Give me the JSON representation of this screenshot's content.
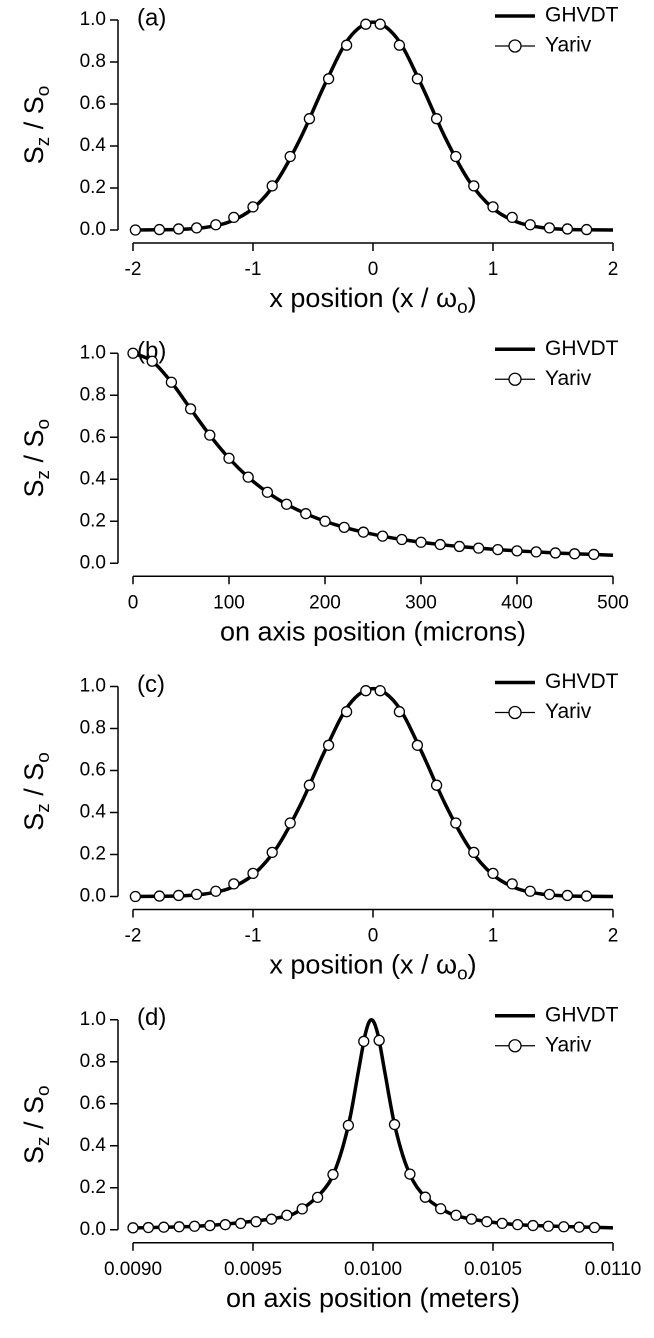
{
  "chart_data": [
    {
      "type": "line",
      "label": "(a)",
      "ylabel": [
        "S",
        "z",
        " / S",
        "o"
      ],
      "xlabel": [
        "x position (x / ω",
        "o",
        ")"
      ],
      "xlim": [
        -2,
        2
      ],
      "ylim": [
        0,
        1
      ],
      "xticks": [
        -2,
        -1,
        0,
        1,
        2
      ],
      "yticks": [
        {
          "value": 0,
          "label": "0.0"
        },
        {
          "value": 0.2,
          "label": "0.2"
        },
        {
          "value": 0.4,
          "label": "0.4"
        },
        {
          "value": 0.6,
          "label": "0.6"
        },
        {
          "value": 0.8,
          "label": "0.8"
        },
        {
          "value": 1,
          "label": "1.0"
        }
      ],
      "legend": "upper right",
      "series": [
        {
          "name": "GHVDT",
          "color": "#000000",
          "x": [
            -2,
            -1.8,
            -1.6,
            -1.4,
            -1.2,
            -1,
            -0.8,
            -0.6,
            -0.4,
            -0.2,
            0,
            0.2,
            0.4,
            0.6,
            0.8,
            1,
            1.2,
            1.4,
            1.6,
            1.8,
            2
          ],
          "values": [
            0,
            0.001,
            0.003,
            0.012,
            0.038,
            0.103,
            0.234,
            0.442,
            0.695,
            0.913,
            0.99,
            0.913,
            0.695,
            0.442,
            0.234,
            0.103,
            0.038,
            0.012,
            0.003,
            0.001,
            0
          ]
        },
        {
          "name": "Yariv",
          "color": "#000000",
          "marker": "circle",
          "x": [
            -1.98,
            -1.78,
            -1.62,
            -1.47,
            -1.31,
            -1.16,
            -1,
            -0.84,
            -0.69,
            -0.53,
            -0.37,
            -0.22,
            -0.06,
            0.06,
            0.22,
            0.37,
            0.53,
            0.69,
            0.84,
            1,
            1.16,
            1.31,
            1.47,
            1.62,
            1.78
          ],
          "values": [
            0,
            0.002,
            0.005,
            0.01,
            0.025,
            0.06,
            0.11,
            0.21,
            0.35,
            0.53,
            0.72,
            0.88,
            0.98,
            0.98,
            0.88,
            0.72,
            0.53,
            0.35,
            0.21,
            0.11,
            0.06,
            0.025,
            0.01,
            0.005,
            0.002
          ]
        }
      ]
    },
    {
      "type": "line",
      "label": "(b)",
      "ylabel": [
        "S",
        "z",
        " / S",
        "o"
      ],
      "xlabel": [
        "on axis position (microns)"
      ],
      "xlim": [
        0,
        500
      ],
      "ylim": [
        0,
        1
      ],
      "xticks": [
        0,
        100,
        200,
        300,
        400,
        500
      ],
      "yticks": [
        {
          "value": 0,
          "label": "0.0"
        },
        {
          "value": 0.2,
          "label": "0.2"
        },
        {
          "value": 0.4,
          "label": "0.4"
        },
        {
          "value": 0.6,
          "label": "0.6"
        },
        {
          "value": 0.8,
          "label": "0.8"
        },
        {
          "value": 1,
          "label": "1.0"
        }
      ],
      "legend": "upper right",
      "series": [
        {
          "name": "GHVDT",
          "color": "#000000",
          "x": [
            0,
            20,
            40,
            60,
            80,
            100,
            120,
            140,
            160,
            180,
            200,
            220,
            240,
            260,
            280,
            300,
            320,
            340,
            360,
            380,
            400,
            420,
            440,
            460,
            480,
            500
          ],
          "values": [
            1,
            0.962,
            0.862,
            0.735,
            0.61,
            0.5,
            0.41,
            0.338,
            0.281,
            0.236,
            0.2,
            0.171,
            0.148,
            0.129,
            0.113,
            0.1,
            0.089,
            0.08,
            0.072,
            0.065,
            0.059,
            0.054,
            0.049,
            0.045,
            0.042,
            0.038
          ]
        },
        {
          "name": "Yariv",
          "color": "#000000",
          "marker": "circle",
          "x": [
            0,
            20,
            40,
            60,
            80,
            100,
            120,
            140,
            160,
            180,
            200,
            220,
            240,
            260,
            280,
            300,
            320,
            340,
            360,
            380,
            400,
            420,
            440,
            460,
            480
          ],
          "values": [
            1,
            0.962,
            0.862,
            0.735,
            0.61,
            0.5,
            0.41,
            0.338,
            0.281,
            0.236,
            0.2,
            0.171,
            0.148,
            0.129,
            0.113,
            0.1,
            0.089,
            0.08,
            0.072,
            0.065,
            0.059,
            0.054,
            0.049,
            0.045,
            0.042
          ]
        }
      ]
    },
    {
      "type": "line",
      "label": "(c)",
      "ylabel": [
        "S",
        "z",
        " / S",
        "o"
      ],
      "xlabel": [
        "x position (x / ω",
        "o",
        ")"
      ],
      "xlim": [
        -2,
        2
      ],
      "ylim": [
        0,
        1
      ],
      "xticks": [
        -2,
        -1,
        0,
        1,
        2
      ],
      "yticks": [
        {
          "value": 0,
          "label": "0.0"
        },
        {
          "value": 0.2,
          "label": "0.2"
        },
        {
          "value": 0.4,
          "label": "0.4"
        },
        {
          "value": 0.6,
          "label": "0.6"
        },
        {
          "value": 0.8,
          "label": "0.8"
        },
        {
          "value": 1,
          "label": "1.0"
        }
      ],
      "legend": "upper right",
      "series": [
        {
          "name": "GHVDT",
          "color": "#000000",
          "x": [
            -2,
            -1.8,
            -1.6,
            -1.4,
            -1.2,
            -1,
            -0.8,
            -0.6,
            -0.4,
            -0.2,
            0,
            0.2,
            0.4,
            0.6,
            0.8,
            1,
            1.2,
            1.4,
            1.6,
            1.8,
            2
          ],
          "values": [
            0,
            0.001,
            0.003,
            0.012,
            0.038,
            0.103,
            0.234,
            0.442,
            0.695,
            0.913,
            0.99,
            0.913,
            0.695,
            0.442,
            0.234,
            0.103,
            0.038,
            0.012,
            0.003,
            0.001,
            0
          ]
        },
        {
          "name": "Yariv",
          "color": "#000000",
          "marker": "circle",
          "x": [
            -1.98,
            -1.78,
            -1.62,
            -1.47,
            -1.31,
            -1.16,
            -1,
            -0.84,
            -0.69,
            -0.53,
            -0.37,
            -0.22,
            -0.06,
            0.06,
            0.22,
            0.37,
            0.53,
            0.69,
            0.84,
            1,
            1.16,
            1.31,
            1.47,
            1.62,
            1.78
          ],
          "values": [
            0,
            0.002,
            0.005,
            0.01,
            0.025,
            0.06,
            0.11,
            0.21,
            0.35,
            0.53,
            0.72,
            0.88,
            0.98,
            0.98,
            0.88,
            0.72,
            0.53,
            0.35,
            0.21,
            0.11,
            0.06,
            0.025,
            0.01,
            0.005,
            0.002
          ]
        }
      ]
    },
    {
      "type": "line",
      "label": "(d)",
      "ylabel": [
        "S",
        "z",
        " / S",
        "o"
      ],
      "xlabel": [
        "on axis position (meters)"
      ],
      "xlim": [
        0.009,
        0.011
      ],
      "ylim": [
        0,
        1
      ],
      "xticks": [
        {
          "value": 0.009,
          "label": "0.0090"
        },
        {
          "value": 0.0095,
          "label": "0.0095"
        },
        {
          "value": 0.01,
          "label": "0.0100"
        },
        {
          "value": 0.0105,
          "label": "0.0105"
        },
        {
          "value": 0.011,
          "label": "0.0110"
        }
      ],
      "yticks": [
        {
          "value": 0,
          "label": "0.0"
        },
        {
          "value": 0.2,
          "label": "0.2"
        },
        {
          "value": 0.4,
          "label": "0.4"
        },
        {
          "value": 0.6,
          "label": "0.6"
        },
        {
          "value": 0.8,
          "label": "0.8"
        },
        {
          "value": 1,
          "label": "1.0"
        }
      ],
      "legend": "upper right",
      "series": [
        {
          "name": "GHVDT",
          "color": "#000000",
          "x": [
            0.009,
            0.0093,
            0.0096,
            0.0097,
            0.0098,
            0.00985,
            0.0099,
            0.00994,
            0.00997,
            0.009994,
            0.01002,
            0.01005,
            0.01009,
            0.01014,
            0.0102,
            0.0103,
            0.0104,
            0.0106,
            0.011
          ],
          "values": [
            0.0092,
            0.0188,
            0.056,
            0.0963,
            0.197,
            0.308,
            0.51,
            0.76,
            0.941,
            1,
            0.932,
            0.746,
            0.5,
            0.302,
            0.178,
            0.0896,
            0.0529,
            0.0245,
            0.009
          ]
        },
        {
          "name": "Yariv",
          "color": "#000000",
          "marker": "circle",
          "x": [
            0.009,
            0.0090641,
            0.0091282,
            0.0091923,
            0.0092564,
            0.0093205,
            0.0093846,
            0.0094487,
            0.0095128,
            0.0095769,
            0.009641,
            0.0097051,
            0.0097692,
            0.0098333,
            0.0098974,
            0.0099615,
            0.0100256,
            0.0100897,
            0.0101538,
            0.0102179,
            0.010282,
            0.0103461,
            0.0104102,
            0.0104743,
            0.0105384,
            0.0106025,
            0.0106666,
            0.0107307,
            0.0107948,
            0.0108589,
            0.010923
          ],
          "values": [
            0.0092,
            0.0105,
            0.0122,
            0.0141,
            0.0167,
            0.0199,
            0.0242,
            0.0301,
            0.0383,
            0.0503,
            0.0689,
            0.0994,
            0.154,
            0.263,
            0.497,
            0.897,
            0.902,
            0.501,
            0.265,
            0.155,
            0.1,
            0.069,
            0.0505,
            0.0384,
            0.0302,
            0.0243,
            0.02,
            0.0167,
            0.0142,
            0.0122,
            0.0106
          ]
        }
      ]
    }
  ]
}
